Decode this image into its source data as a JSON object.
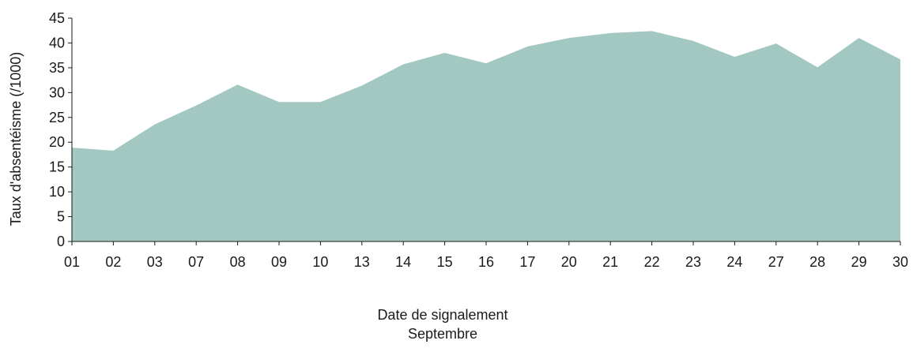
{
  "chart_data": {
    "type": "area",
    "categories": [
      "01",
      "02",
      "03",
      "07",
      "08",
      "09",
      "10",
      "13",
      "14",
      "15",
      "16",
      "17",
      "20",
      "21",
      "22",
      "23",
      "24",
      "27",
      "28",
      "29",
      "30"
    ],
    "values": [
      18.9,
      18.3,
      23.6,
      27.4,
      31.6,
      28.1,
      28.1,
      31.4,
      35.7,
      38.0,
      35.9,
      39.3,
      41.0,
      42.0,
      42.4,
      40.4,
      37.2,
      39.9,
      35.1,
      41.0,
      36.7
    ],
    "xlabel": "Date de signalement",
    "xlabel_sub": "Septembre",
    "ylabel": "Taux d'absentéisme (/1000)",
    "ylim": [
      0,
      45
    ],
    "yticks": [
      0,
      5,
      10,
      15,
      20,
      25,
      30,
      35,
      40,
      45
    ],
    "grid": false,
    "area_color": "#a3c7c1",
    "axis_color": "#1a1a1a"
  }
}
